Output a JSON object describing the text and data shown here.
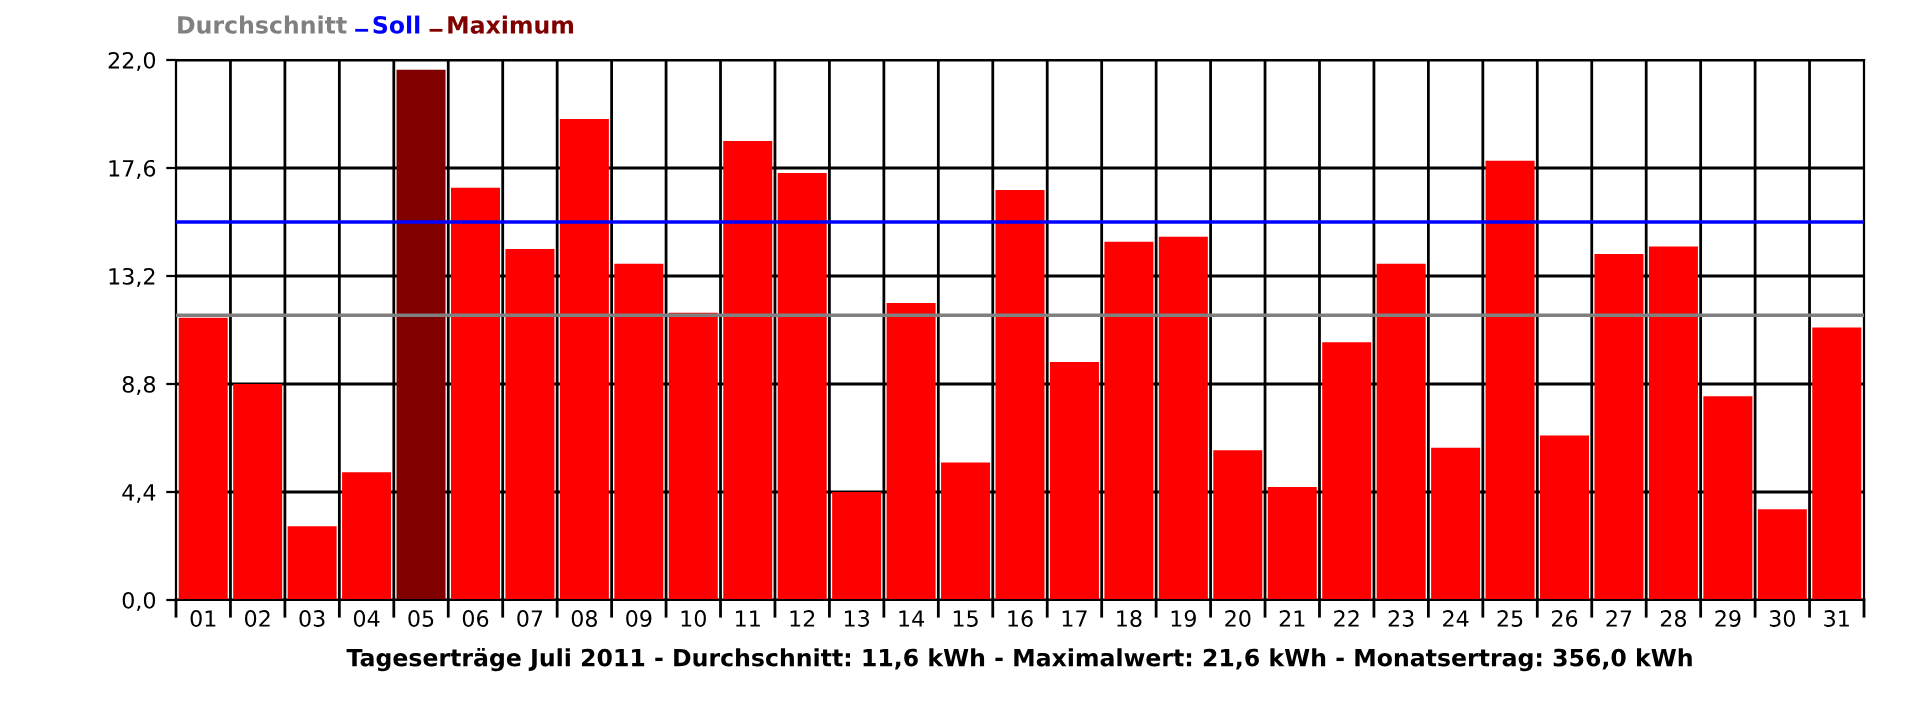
{
  "chart_data": {
    "type": "bar",
    "xlabel": "Tageserträge Juli 2011 - Durchschnitt: 11,6 kWh - Maximalwert: 21,6 kWh - Monatsertrag: 356,0 kWh",
    "categories": [
      "01",
      "02",
      "03",
      "04",
      "05",
      "06",
      "07",
      "08",
      "09",
      "10",
      "11",
      "12",
      "13",
      "14",
      "15",
      "16",
      "17",
      "18",
      "19",
      "20",
      "21",
      "22",
      "23",
      "24",
      "25",
      "26",
      "27",
      "28",
      "29",
      "30",
      "31"
    ],
    "series": [
      {
        "color": "#ff0000",
        "values": [
          11.5,
          8.8,
          3.0,
          5.2,
          null,
          16.8,
          14.3,
          19.6,
          13.7,
          11.7,
          18.7,
          17.4,
          4.4,
          12.1,
          5.6,
          16.7,
          9.7,
          14.6,
          14.8,
          6.1,
          4.6,
          10.5,
          13.7,
          6.2,
          17.9,
          6.7,
          14.1,
          14.4,
          8.3,
          3.7,
          11.1
        ]
      },
      {
        "name": "Maximum",
        "color": "#800000",
        "values": [
          null,
          null,
          null,
          null,
          21.6,
          null,
          null,
          null,
          null,
          null,
          null,
          null,
          null,
          null,
          null,
          null,
          null,
          null,
          null,
          null,
          null,
          null,
          null,
          null,
          null,
          null,
          null,
          null,
          null,
          null,
          null
        ]
      }
    ],
    "ref_lines": [
      {
        "axis": "y",
        "value": 11.6,
        "label": "Durchschnitt",
        "color": "#808080"
      },
      {
        "axis": "y",
        "value": 15.4,
        "label": "Soll",
        "color": "#0000ff"
      }
    ],
    "ylim": [
      0,
      22
    ],
    "yticks": [
      {
        "value": 0,
        "label": "0,0"
      },
      {
        "value": 4.4,
        "label": "4,4"
      },
      {
        "value": 8.8,
        "label": "8,8"
      },
      {
        "value": 13.2,
        "label": "13,2"
      },
      {
        "value": 17.6,
        "label": "17,6"
      },
      {
        "value": 22,
        "label": "22,0"
      }
    ],
    "grid": true,
    "legend": "top left"
  }
}
